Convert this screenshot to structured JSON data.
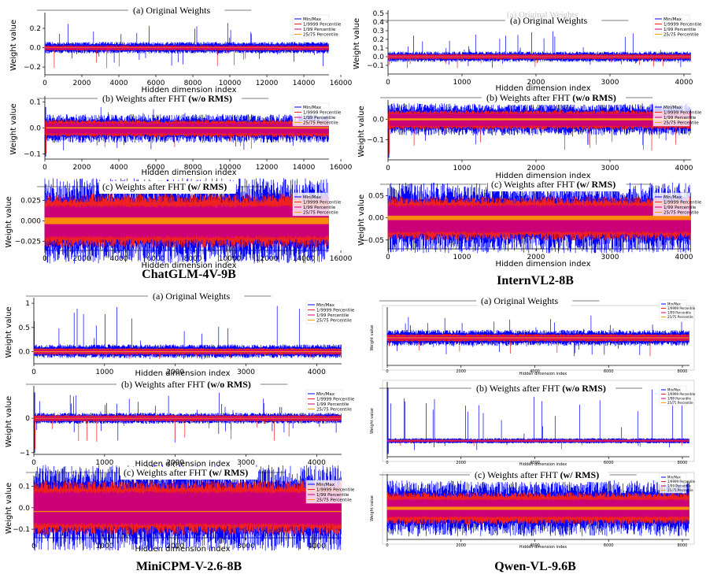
{
  "colors": {
    "minmax": "#0000ff",
    "p9999": "#ee2222",
    "p99": "#cc0077",
    "p2575": "#ff9900",
    "axis": "#000000",
    "overlay": "#c8c8c8"
  },
  "legend_labels": [
    "Min/Max",
    "1/9999 Percentile",
    "1/99 Percentile",
    "25/75 Percentile"
  ],
  "legend_labels_alt": [
    "Min/Max",
    "1/9999 Percentile",
    "1/99 Percentile",
    "25/75 Percentile"
  ],
  "panel_titles": {
    "a": "(a) Original Weights",
    "b_prefix": "(b) Weights after FHT ",
    "b_bold": "(w/o RMS)",
    "c_prefix": "(c) Weights after FHT ",
    "c_bold": "(w/ RMS)"
  },
  "overlap_title": "(a) Original Weights",
  "axis_labels": {
    "x": "Hidden dimension index",
    "y": "Weight value"
  },
  "models": [
    {
      "name": "ChatGLM-4V-9B",
      "dim": 15360
    },
    {
      "name": "InternVL2-8B",
      "dim": 4096
    },
    {
      "name": "MiniCPM-V-2.6-8B",
      "dim": 4352
    },
    {
      "name": "Qwen-VL-9.6B",
      "dim": 8192
    }
  ],
  "chart_data": [
    {
      "type": "line",
      "model": "ChatGLM-4V-9B",
      "panel": "a",
      "title": "(a) Original Weights",
      "xlabel": "Hidden dimension index",
      "ylabel": "Weight value",
      "xlim": [
        0,
        15360
      ],
      "xticks": [
        0,
        2000,
        4000,
        6000,
        8000,
        10000,
        12000,
        14000,
        16000
      ],
      "ylim": [
        -0.28,
        0.33
      ],
      "yticks": [
        -0.2,
        0.0,
        0.2
      ],
      "series": [
        {
          "name": "Min/Max",
          "upper": 0.03,
          "lower": -0.03,
          "spikes_max": 0.28,
          "spikes_min": -0.26
        },
        {
          "name": "1/9999 Percentile",
          "upper": 0.015,
          "lower": -0.02
        },
        {
          "name": "1/99 Percentile",
          "upper": 0.01,
          "lower": -0.015
        },
        {
          "name": "25/75 Percentile",
          "upper": 0.003,
          "lower": -0.003
        }
      ]
    },
    {
      "type": "line",
      "model": "ChatGLM-4V-9B",
      "panel": "b",
      "title": "(b) Weights after FHT (w/o RMS)",
      "xlabel": "Hidden dimension index",
      "ylabel": "Weight value",
      "xlim": [
        0,
        15360
      ],
      "xticks": [
        0,
        2000,
        4000,
        6000,
        8000,
        10000,
        12000,
        14000,
        16000
      ],
      "ylim": [
        -0.12,
        0.11
      ],
      "yticks": [
        -0.1,
        0.0,
        0.1
      ],
      "series": [
        {
          "name": "Min/Max",
          "upper": 0.025,
          "lower": -0.03,
          "spikes_max": 0.08,
          "spikes_min": -0.11
        },
        {
          "name": "1/9999 Percentile",
          "upper": 0.02,
          "lower": -0.025
        },
        {
          "name": "1/99 Percentile",
          "upper": 0.015,
          "lower": -0.02
        },
        {
          "name": "25/75 Percentile",
          "upper": 0.003,
          "lower": -0.003
        }
      ]
    },
    {
      "type": "line",
      "model": "ChatGLM-4V-9B",
      "panel": "c",
      "title": "(c) Weights after FHT (w/ RMS)",
      "xlabel": "Hidden dimension index",
      "ylabel": "Weight value",
      "xlim": [
        0,
        15360
      ],
      "xticks": [
        0,
        2000,
        4000,
        6000,
        8000,
        10000,
        12000,
        14000,
        16000
      ],
      "ylim": [
        -0.036,
        0.033
      ],
      "yticks": [
        -0.025,
        0.0,
        0.025
      ],
      "series": [
        {
          "name": "Min/Max",
          "upper": 0.026,
          "lower": -0.026,
          "spikes_max": 0.031,
          "spikes_min": -0.031
        },
        {
          "name": "1/9999 Percentile",
          "upper": 0.022,
          "lower": -0.022
        },
        {
          "name": "1/99 Percentile",
          "upper": 0.016,
          "lower": -0.018
        },
        {
          "name": "25/75 Percentile",
          "upper": 0.004,
          "lower": -0.004
        }
      ]
    },
    {
      "type": "line",
      "model": "InternVL2-8B",
      "panel": "a",
      "title": "(a) Original Weights",
      "xlabel": "Hidden dimension index",
      "ylabel": "Weight value",
      "xlim": [
        0,
        4096
      ],
      "xticks": [
        0,
        1000,
        2000,
        3000,
        4000
      ],
      "ylim": [
        -0.2,
        0.5
      ],
      "yticks": [
        -0.1,
        0.0,
        0.1,
        0.2,
        0.3,
        0.4,
        0.5
      ],
      "series": [
        {
          "name": "Min/Max",
          "upper": 0.03,
          "lower": -0.03,
          "spikes_max": 0.3,
          "spikes_min": -0.17
        },
        {
          "name": "1/9999 Percentile",
          "upper": 0.02,
          "lower": -0.02
        },
        {
          "name": "1/99 Percentile",
          "upper": 0.012,
          "lower": -0.012
        },
        {
          "name": "25/75 Percentile",
          "upper": 0.004,
          "lower": -0.004
        }
      ]
    },
    {
      "type": "line",
      "model": "InternVL2-8B",
      "panel": "b",
      "title": "(b) Weights after FHT (w/o RMS)",
      "xlabel": "Hidden dimension index",
      "ylabel": "Weight value",
      "xlim": [
        0,
        4096
      ],
      "xticks": [
        0,
        1000,
        2000,
        3000,
        4000
      ],
      "ylim": [
        -0.2,
        0.08
      ],
      "yticks": [
        -0.1,
        0.0
      ],
      "series": [
        {
          "name": "Min/Max",
          "upper": 0.04,
          "lower": -0.04,
          "spikes_max": 0.07,
          "spikes_min": -0.19
        },
        {
          "name": "1/9999 Percentile",
          "upper": 0.03,
          "lower": -0.035
        },
        {
          "name": "1/99 Percentile",
          "upper": 0.025,
          "lower": -0.03
        },
        {
          "name": "25/75 Percentile",
          "upper": 0.005,
          "lower": -0.005
        }
      ]
    },
    {
      "type": "line",
      "model": "InternVL2-8B",
      "panel": "c",
      "title": "(c) Weights after FHT (w/ RMS)",
      "xlabel": "Hidden dimension index",
      "ylabel": "Weight value",
      "xlim": [
        0,
        4096
      ],
      "xticks": [
        0,
        1000,
        2000,
        3000,
        4000
      ],
      "ylim": [
        -0.07,
        0.06
      ],
      "yticks": [
        -0.05,
        0.0,
        0.05
      ],
      "series": [
        {
          "name": "Min/Max",
          "upper": 0.04,
          "lower": -0.04,
          "spikes_max": 0.055,
          "spikes_min": -0.06
        },
        {
          "name": "1/9999 Percentile",
          "upper": 0.032,
          "lower": -0.035
        },
        {
          "name": "1/99 Percentile",
          "upper": 0.025,
          "lower": -0.03
        },
        {
          "name": "25/75 Percentile",
          "upper": 0.005,
          "lower": -0.005
        }
      ]
    },
    {
      "type": "line",
      "model": "MiniCPM-V-2.6-8B",
      "panel": "a",
      "title": "(a) Original Weights",
      "xlabel": "Hidden dimension index",
      "ylabel": "Weight value",
      "xlim": [
        0,
        4352
      ],
      "xticks": [
        0,
        1000,
        2000,
        3000,
        4000
      ],
      "ylim": [
        -0.25,
        1.05
      ],
      "yticks": [
        0.0,
        0.5,
        1.0
      ],
      "series": [
        {
          "name": "Min/Max",
          "upper": 0.08,
          "lower": -0.06,
          "spikes_max": 0.95,
          "spikes_min": -0.2
        },
        {
          "name": "1/9999 Percentile",
          "upper": 0.05,
          "lower": -0.04
        },
        {
          "name": "1/99 Percentile",
          "upper": 0.03,
          "lower": -0.03
        },
        {
          "name": "25/75 Percentile",
          "upper": 0.01,
          "lower": -0.01
        }
      ]
    },
    {
      "type": "line",
      "model": "MiniCPM-V-2.6-8B",
      "panel": "b",
      "title": "(b) Weights after FHT (w/o RMS)",
      "xlabel": "Hidden dimension index",
      "ylabel": "Weight value",
      "xlim": [
        0,
        4352
      ],
      "xticks": [
        0,
        1000,
        2000,
        3000,
        4000
      ],
      "ylim": [
        -1.05,
        0.85
      ],
      "yticks": [
        -1,
        0
      ],
      "series": [
        {
          "name": "Min/Max",
          "upper": 0.08,
          "lower": -0.08,
          "spikes_max": 0.75,
          "spikes_min": -1.0
        },
        {
          "name": "1/9999 Percentile",
          "upper": 0.06,
          "lower": -0.06
        },
        {
          "name": "1/99 Percentile",
          "upper": 0.04,
          "lower": -0.04
        },
        {
          "name": "25/75 Percentile",
          "upper": 0.01,
          "lower": -0.01
        }
      ]
    },
    {
      "type": "line",
      "model": "MiniCPM-V-2.6-8B",
      "panel": "c",
      "title": "(c) Weights after FHT (w/ RMS)",
      "xlabel": "Hidden dimension index",
      "ylabel": "Weight value",
      "xlim": [
        0,
        4352
      ],
      "xticks": [
        0,
        1000,
        2000,
        3000,
        4000
      ],
      "ylim": [
        -0.14,
        0.135
      ],
      "yticks": [
        -0.1,
        0.0,
        0.1
      ],
      "series": [
        {
          "name": "Min/Max",
          "upper": 0.1,
          "lower": -0.1,
          "spikes_max": 0.13,
          "spikes_min": -0.135
        },
        {
          "name": "1/9999 Percentile",
          "upper": 0.085,
          "lower": -0.085
        },
        {
          "name": "1/99 Percentile",
          "upper": 0.065,
          "lower": -0.07
        },
        {
          "name": "25/75 Percentile",
          "upper": -0.015,
          "lower": -0.02
        }
      ]
    },
    {
      "type": "line",
      "model": "Qwen-VL-9.6B",
      "panel": "a",
      "title": "(a) Original Weights",
      "xlabel": "Hidden dimension index",
      "ylabel": "Weight value",
      "xlim": [
        0,
        8192
      ],
      "xticks": [
        0,
        2000,
        4000,
        6000,
        8000
      ],
      "ylim": [
        -0.55,
        0.55
      ],
      "series": [
        {
          "name": "Min/Max",
          "upper": 0.08,
          "lower": -0.08,
          "spikes_max": 0.5,
          "spikes_min": -0.5
        },
        {
          "name": "1/9999 Percentile",
          "upper": 0.05,
          "lower": -0.05
        },
        {
          "name": "1/99 Percentile",
          "upper": 0.03,
          "lower": -0.03
        },
        {
          "name": "25/75 Percentile",
          "upper": 0.01,
          "lower": -0.01
        }
      ]
    },
    {
      "type": "line",
      "model": "Qwen-VL-9.6B",
      "panel": "b",
      "title": "(b) Weights after FHT (w/o RMS)",
      "xlabel": "Hidden dimension index",
      "ylabel": "Weight value",
      "xlim": [
        0,
        8192
      ],
      "xticks": [
        0,
        2000,
        4000,
        6000,
        8000
      ],
      "ylim": [
        -0.6,
        2.1
      ],
      "series": [
        {
          "name": "Min/Max",
          "upper": 0.05,
          "lower": -0.05,
          "spikes_max": 2.0,
          "spikes_min": -0.5
        },
        {
          "name": "1/9999 Percentile",
          "upper": 0.03,
          "lower": -0.03
        },
        {
          "name": "1/99 Percentile",
          "upper": 0.02,
          "lower": -0.02
        },
        {
          "name": "25/75 Percentile",
          "upper": 0.005,
          "lower": -0.005
        }
      ]
    },
    {
      "type": "line",
      "model": "Qwen-VL-9.6B",
      "panel": "c",
      "title": "(c) Weights after FHT (w/ RMS)",
      "xlabel": "Hidden dimension index",
      "ylabel": "Weight value",
      "xlim": [
        0,
        8192
      ],
      "xticks": [
        0,
        2000,
        4000,
        6000,
        8000
      ],
      "ylim": [
        -0.2,
        0.2
      ],
      "series": [
        {
          "name": "Min/Max",
          "upper": 0.09,
          "lower": -0.09,
          "spikes_max": 0.16,
          "spikes_min": -0.17
        },
        {
          "name": "1/9999 Percentile",
          "upper": 0.07,
          "lower": -0.07
        },
        {
          "name": "1/99 Percentile",
          "upper": 0.05,
          "lower": -0.05
        },
        {
          "name": "25/75 Percentile",
          "upper": 0.01,
          "lower": -0.01
        }
      ]
    }
  ]
}
